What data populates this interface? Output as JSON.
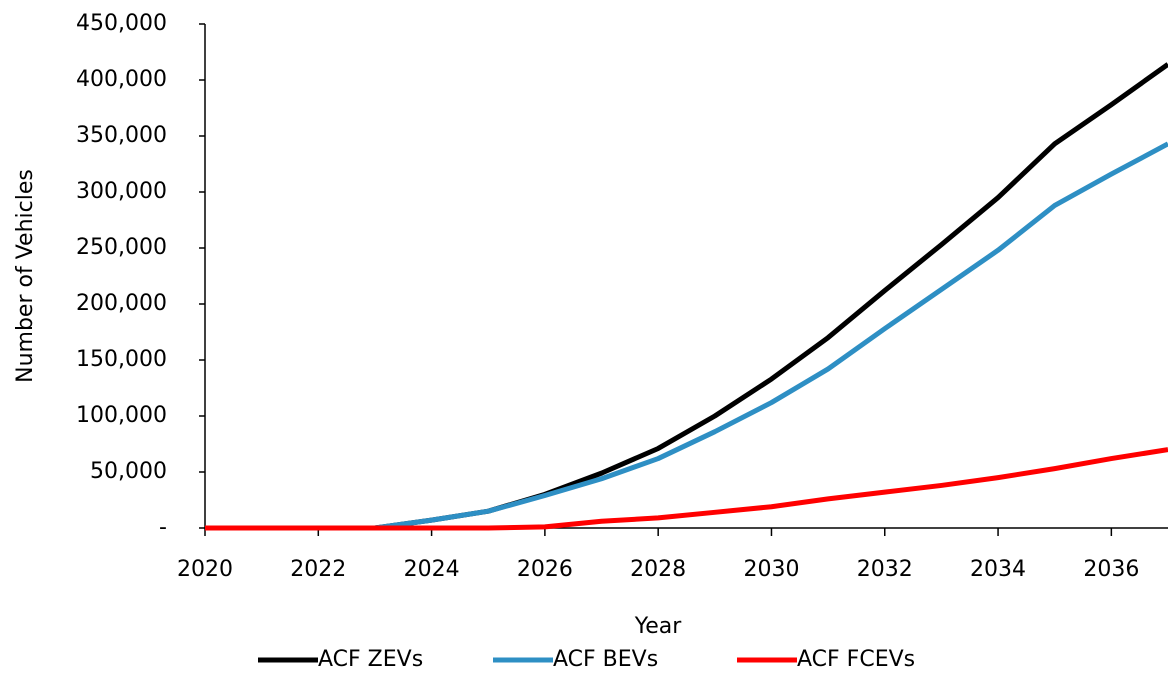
{
  "chart_data": {
    "type": "line",
    "x_label": "Year",
    "y_label": "Number of Vehicles",
    "x": [
      2020,
      2021,
      2022,
      2023,
      2024,
      2025,
      2026,
      2027,
      2028,
      2029,
      2030,
      2031,
      2032,
      2033,
      2034,
      2035,
      2036,
      2037
    ],
    "series": [
      {
        "name": "ACF ZEVs",
        "color": "#000000",
        "values": [
          0,
          0,
          0,
          0,
          7000,
          15000,
          30000,
          49000,
          71000,
          100000,
          133000,
          170000,
          212000,
          253000,
          295000,
          343000,
          378000,
          414000
        ]
      },
      {
        "name": "ACF BEVs",
        "color": "#2e8fc4",
        "values": [
          0,
          0,
          0,
          0,
          7000,
          15000,
          29000,
          44000,
          62000,
          86000,
          112000,
          142000,
          178000,
          213000,
          248000,
          288000,
          316000,
          343000
        ]
      },
      {
        "name": "ACF FCEVs",
        "color": "#ff0000",
        "values": [
          0,
          0,
          0,
          0,
          0,
          0,
          1000,
          6000,
          9000,
          14000,
          19000,
          26000,
          32000,
          38000,
          45000,
          53000,
          62000,
          70000
        ]
      }
    ],
    "xlim": [
      2020,
      2037
    ],
    "xticks": [
      2020,
      2022,
      2024,
      2026,
      2028,
      2030,
      2032,
      2034,
      2036
    ],
    "ylim": [
      0,
      450000
    ],
    "yticks": [
      {
        "value": 0,
        "label": "-"
      },
      {
        "value": 50000,
        "label": "50,000"
      },
      {
        "value": 100000,
        "label": "100,000"
      },
      {
        "value": 150000,
        "label": "150,000"
      },
      {
        "value": 200000,
        "label": "200,000"
      },
      {
        "value": 250000,
        "label": "250,000"
      },
      {
        "value": 300000,
        "label": "300,000"
      },
      {
        "value": 350000,
        "label": "350,000"
      },
      {
        "value": 400000,
        "label": "400,000"
      },
      {
        "value": 450000,
        "label": "450,000"
      }
    ],
    "grid": false,
    "legend": "bottom"
  }
}
